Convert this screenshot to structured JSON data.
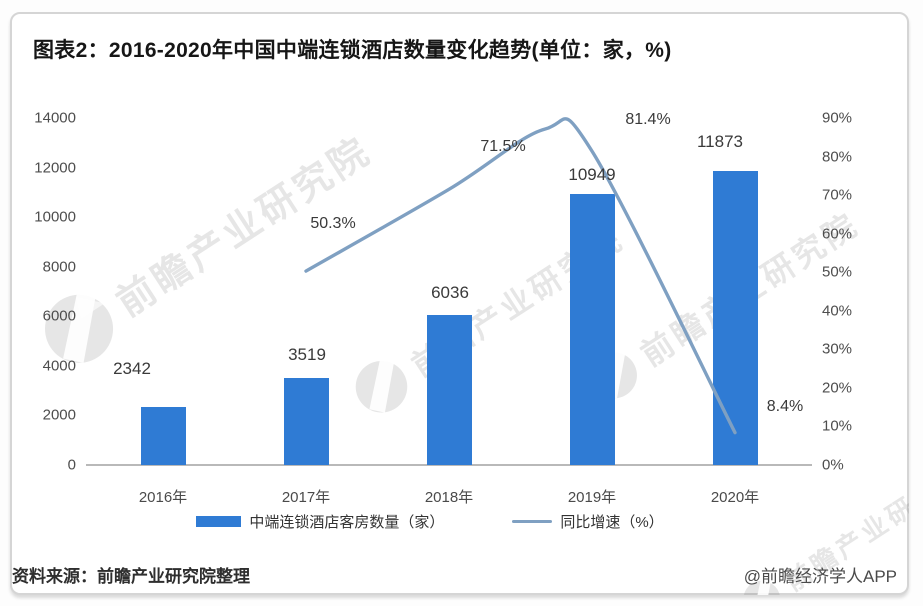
{
  "card": {
    "title": "图表2：2016-2020年中国中端连锁酒店数量变化趋势(单位：家，%)",
    "source_note": "资料来源：前瞻产业研究院整理",
    "credit": "@前瞻经济学人APP",
    "watermark_text": "前瞻产业研究院"
  },
  "colors": {
    "bar": "#2f7bd4",
    "line": "#7fa0c2",
    "axis_line": "#b9b9b9"
  },
  "chart_data": {
    "type": "bar",
    "subtype": "bar-line-combo",
    "categories": [
      "2016年",
      "2017年",
      "2018年",
      "2019年",
      "2020年"
    ],
    "series": [
      {
        "name": "中端连锁酒店客房数量（家）",
        "type": "bar",
        "axis": "left",
        "values": [
          2342,
          3519,
          6036,
          10949,
          11873
        ],
        "labels": [
          "2342",
          "3519",
          "6036",
          "10949",
          "11873"
        ]
      },
      {
        "name": "同比增速（%）",
        "type": "line",
        "axis": "right",
        "values": [
          null,
          50.3,
          71.5,
          81.4,
          8.4
        ],
        "labels": [
          "50.3%",
          "71.5%",
          "81.4%",
          "8.4%"
        ]
      }
    ],
    "left_axis": {
      "min": 0,
      "max": 14000,
      "ticks": [
        "14000",
        "12000",
        "10000",
        "8000",
        "6000",
        "4000",
        "2000",
        "0"
      ]
    },
    "right_axis": {
      "min": 0,
      "max": 90,
      "ticks": [
        "90%",
        "80%",
        "70%",
        "60%",
        "50%",
        "40%",
        "30%",
        "20%",
        "10%",
        "0%"
      ]
    },
    "grid": false,
    "legend_position": "bottom"
  }
}
